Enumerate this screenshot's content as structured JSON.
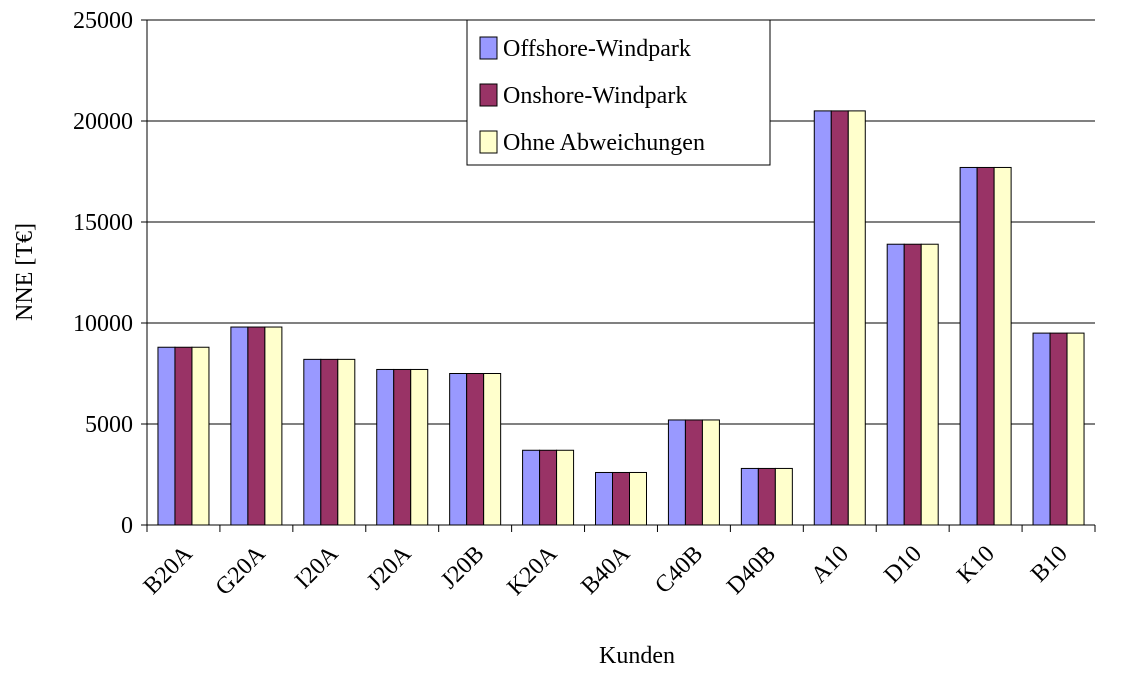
{
  "chart_data": {
    "type": "bar",
    "categories": [
      "B20A",
      "G20A",
      "I20A",
      "J20A",
      "J20B",
      "K20A",
      "B40A",
      "C40B",
      "D40B",
      "A10",
      "D10",
      "K10",
      "B10"
    ],
    "series": [
      {
        "name": "Offshore-Windpark",
        "color": "#9999ff",
        "values": [
          8800,
          9800,
          8200,
          7700,
          7500,
          3700,
          2600,
          5200,
          2800,
          20500,
          13900,
          17700,
          9500
        ]
      },
      {
        "name": "Onshore-Windpark",
        "color": "#993366",
        "values": [
          8800,
          9800,
          8200,
          7700,
          7500,
          3700,
          2600,
          5200,
          2800,
          20500,
          13900,
          17700,
          9500
        ]
      },
      {
        "name": "Ohne Abweichungen",
        "color": "#ffffcc",
        "values": [
          8800,
          9800,
          8200,
          7700,
          7500,
          3700,
          2600,
          5200,
          2800,
          20500,
          13900,
          17700,
          9500
        ]
      }
    ],
    "x_label": "Kunden",
    "y_label": "NNE [T€]",
    "ylim": [
      0,
      25000
    ],
    "yticks": [
      0,
      5000,
      10000,
      15000,
      20000,
      25000
    ],
    "grid": true,
    "legend": "top"
  }
}
